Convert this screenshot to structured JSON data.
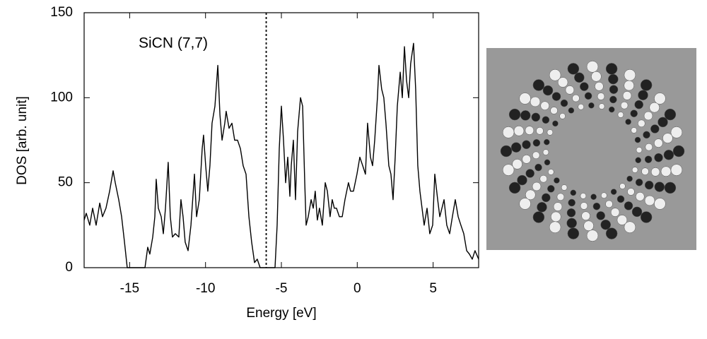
{
  "chart_data": {
    "type": "line",
    "annotation": "SiCN (7,7)",
    "x_label": "Energy  [eV]",
    "y_label": "DOS  [arb. unit]",
    "xlim": [
      -18,
      8
    ],
    "ylim": [
      0,
      150
    ],
    "xticks": [
      -15,
      -10,
      -5,
      0,
      5
    ],
    "yticks": [
      0,
      50,
      100,
      150
    ],
    "fermi_level": -6,
    "series": [
      {
        "color": "#000000",
        "x": [
          -18.0,
          -17.86,
          -17.63,
          -17.44,
          -17.21,
          -16.97,
          -16.79,
          -16.56,
          -16.32,
          -16.09,
          -15.95,
          -15.72,
          -15.53,
          -15.34,
          -15.16,
          -13.99,
          -13.81,
          -13.67,
          -13.48,
          -13.34,
          -13.25,
          -13.11,
          -12.92,
          -12.78,
          -12.64,
          -12.46,
          -12.32,
          -12.18,
          -11.99,
          -11.76,
          -11.62,
          -11.48,
          -11.34,
          -11.15,
          -10.96,
          -10.73,
          -10.59,
          -10.41,
          -10.22,
          -10.13,
          -9.99,
          -9.85,
          -9.71,
          -9.57,
          -9.38,
          -9.19,
          -9.05,
          -8.91,
          -8.73,
          -8.64,
          -8.45,
          -8.26,
          -8.08,
          -7.89,
          -7.7,
          -7.52,
          -7.33,
          -7.14,
          -6.96,
          -6.77,
          -6.59,
          -6.4,
          -5.42,
          -5.28,
          -5.14,
          -5.0,
          -4.86,
          -4.72,
          -4.58,
          -4.44,
          -4.35,
          -4.21,
          -4.07,
          -3.93,
          -3.74,
          -3.6,
          -3.46,
          -3.37,
          -3.23,
          -3.04,
          -2.9,
          -2.77,
          -2.63,
          -2.49,
          -2.3,
          -2.11,
          -1.97,
          -1.79,
          -1.65,
          -1.51,
          -1.37,
          -1.18,
          -0.99,
          -0.81,
          -0.58,
          -0.44,
          -0.25,
          -0.02,
          0.17,
          0.36,
          0.54,
          0.68,
          0.87,
          1.01,
          1.15,
          1.33,
          1.43,
          1.61,
          1.75,
          1.89,
          2.08,
          2.22,
          2.36,
          2.5,
          2.64,
          2.83,
          2.97,
          3.11,
          3.25,
          3.39,
          3.52,
          3.71,
          3.85,
          3.99,
          4.13,
          4.27,
          4.41,
          4.6,
          4.78,
          4.97,
          5.11,
          5.3,
          5.44,
          5.58,
          5.72,
          5.9,
          6.09,
          6.27,
          6.46,
          6.65,
          6.83,
          7.02,
          7.21,
          7.39,
          7.58,
          7.76,
          8.0
        ],
        "values": [
          28,
          32,
          25,
          35,
          25,
          38,
          30,
          35,
          45,
          57,
          50,
          40,
          30,
          15,
          0,
          0,
          12,
          8,
          18,
          30,
          52,
          35,
          30,
          20,
          35,
          62,
          30,
          18,
          20,
          18,
          40,
          30,
          15,
          10,
          25,
          55,
          30,
          40,
          70,
          78,
          60,
          45,
          60,
          85,
          95,
          119,
          90,
          75,
          85,
          92,
          82,
          85,
          75,
          75,
          70,
          60,
          55,
          30,
          15,
          3,
          5,
          0,
          0,
          25,
          70,
          95,
          75,
          50,
          65,
          42,
          60,
          75,
          40,
          80,
          100,
          95,
          50,
          25,
          30,
          40,
          35,
          45,
          28,
          35,
          25,
          50,
          45,
          30,
          40,
          35,
          35,
          30,
          30,
          40,
          50,
          45,
          45,
          55,
          65,
          60,
          55,
          85,
          65,
          60,
          75,
          100,
          119,
          105,
          100,
          85,
          60,
          55,
          40,
          65,
          95,
          115,
          100,
          130,
          110,
          100,
          120,
          132,
          105,
          60,
          45,
          35,
          25,
          35,
          20,
          25,
          55,
          40,
          30,
          35,
          40,
          25,
          20,
          30,
          40,
          30,
          25,
          20,
          10,
          8,
          5,
          10,
          5
        ]
      }
    ]
  }
}
